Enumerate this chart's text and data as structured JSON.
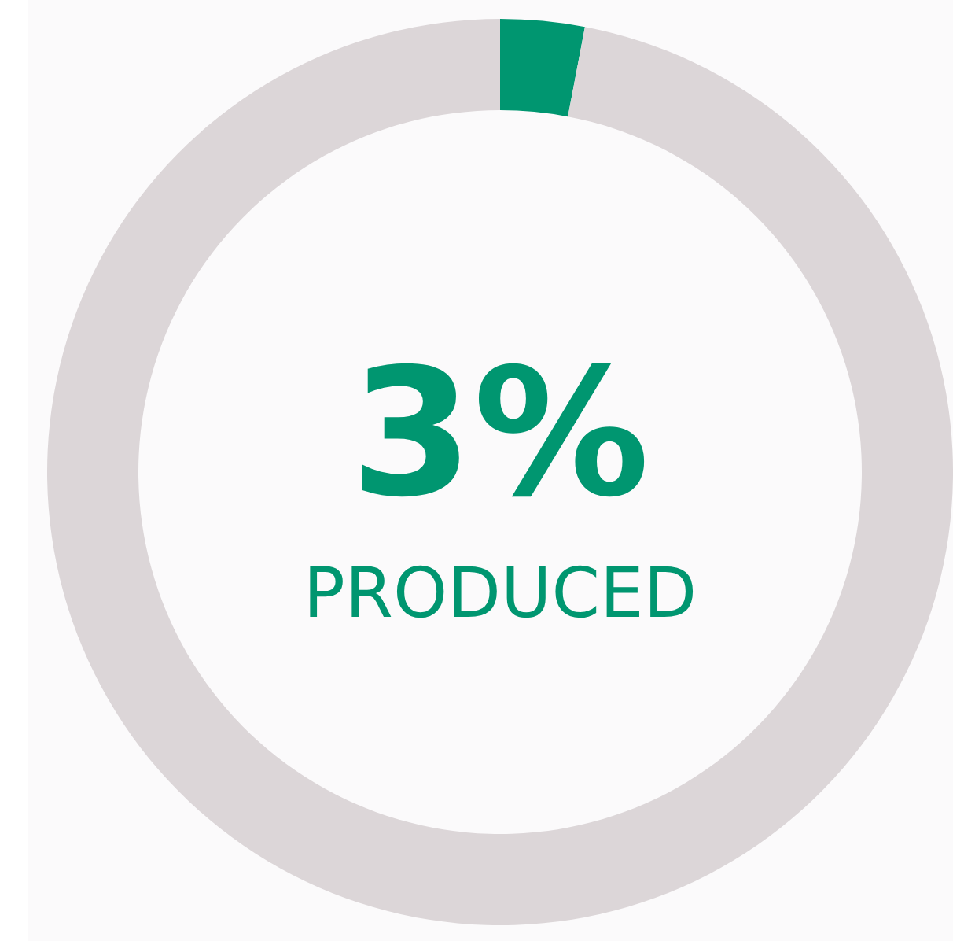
{
  "chart_data": {
    "type": "donut",
    "categories": [
      "PRODUCED",
      null
    ],
    "values": [
      3,
      97
    ],
    "colors": [
      "#009670",
      "#dcd6d8"
    ],
    "value_labels": [
      "3%",
      null
    ]
  }
}
